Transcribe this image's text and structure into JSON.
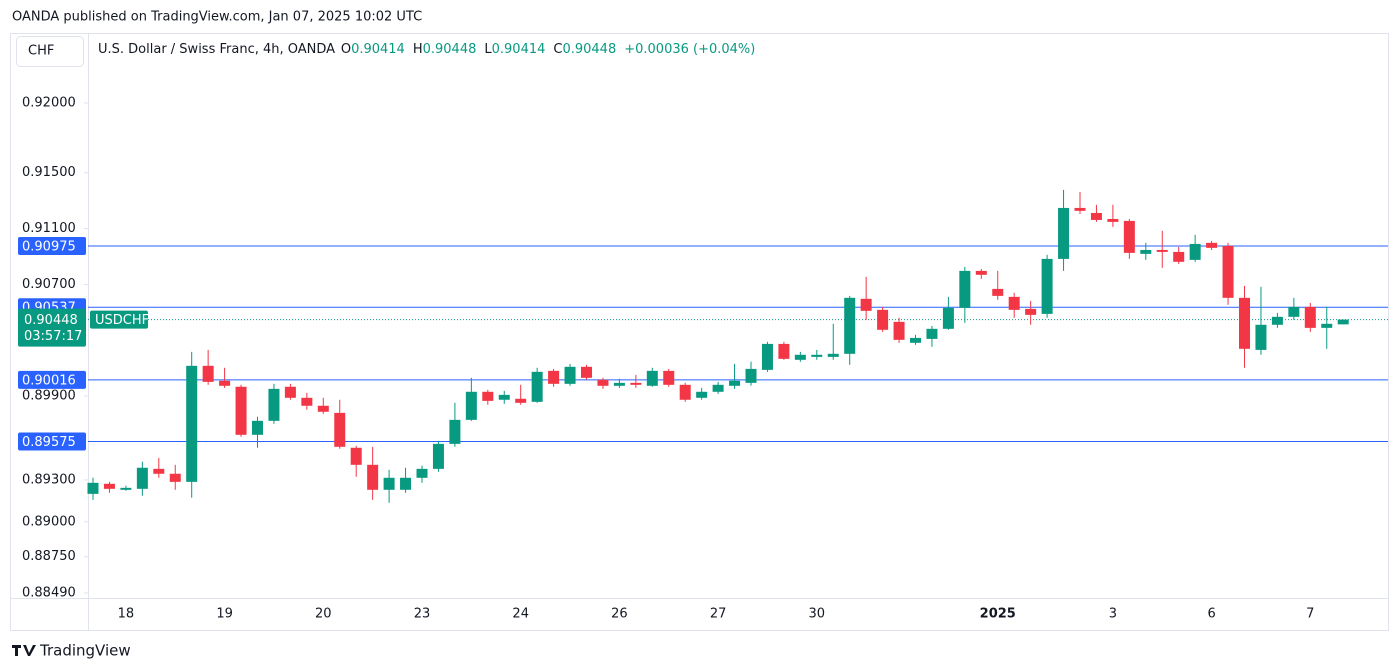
{
  "header": "OANDA published on TradingView.com, Jan 07, 2025 10:02 UTC",
  "footer": "TradingView",
  "chart_data": {
    "type": "candlestick",
    "unit": "CHF",
    "symbol": "USDCHF",
    "countdown": "03:57:17",
    "legend": {
      "name": "U.S. Dollar / Swiss Franc, 4h, OANDA",
      "ohlc": [
        {
          "key": "O",
          "value": "0.90414"
        },
        {
          "key": "H",
          "value": "0.90448"
        },
        {
          "key": "L",
          "value": "0.90414"
        },
        {
          "key": "C",
          "value": "0.90448"
        }
      ],
      "change": "+0.00036 (+0.04%)"
    },
    "up_color": "#089981",
    "down_color": "#f23645",
    "level_color": "#2962ff",
    "ylim": [
      0.88454,
      0.92501
    ],
    "yticks": [
      {
        "value": 0.92,
        "label": "0.92000"
      },
      {
        "value": 0.915,
        "label": "0.91500"
      },
      {
        "value": 0.911,
        "label": "0.91100"
      },
      {
        "value": 0.907,
        "label": "0.90700"
      },
      {
        "value": 0.899,
        "label": "0.89900"
      },
      {
        "value": 0.893,
        "label": "0.89300"
      },
      {
        "value": 0.89,
        "label": "0.89000"
      },
      {
        "value": 0.8875,
        "label": "0.88750"
      },
      {
        "value": 0.8849,
        "label": "0.88490"
      }
    ],
    "levels": [
      0.90975,
      0.90537,
      0.90016,
      0.89575
    ],
    "last_price": 0.90448,
    "categories": [
      null,
      null,
      "18",
      null,
      null,
      null,
      null,
      null,
      "19",
      null,
      null,
      null,
      null,
      null,
      "20",
      null,
      null,
      null,
      null,
      null,
      "23",
      null,
      null,
      null,
      null,
      null,
      "24",
      null,
      null,
      null,
      null,
      null,
      "26",
      null,
      null,
      null,
      null,
      null,
      "27",
      null,
      null,
      null,
      null,
      null,
      "30",
      null,
      null,
      null,
      null,
      null,
      null,
      null,
      null,
      null,
      null,
      "2025",
      null,
      null,
      null,
      null,
      null,
      null,
      "3",
      null,
      null,
      null,
      null,
      null,
      "6",
      null,
      null,
      null,
      null,
      null,
      "7",
      null,
      null
    ],
    "open": [
      0.892,
      0.89272,
      0.89229,
      0.89236,
      0.89379,
      0.89344,
      0.89286,
      0.90117,
      0.9001,
      0.89967,
      0.89623,
      0.89723,
      0.89967,
      0.89888,
      0.89831,
      0.8978,
      0.8953,
      0.89408,
      0.89229,
      0.89229,
      0.89315,
      0.89379,
      0.89558,
      0.8973,
      0.89931,
      0.89874,
      0.89881,
      0.89859,
      0.90081,
      0.89988,
      0.9011,
      0.90017,
      0.89974,
      0.89995,
      0.89974,
      0.90081,
      0.89981,
      0.89888,
      0.89931,
      0.89974,
      0.89995,
      0.90088,
      0.90274,
      0.9016,
      0.90181,
      0.90181,
      0.90203,
      0.90597,
      0.90518,
      0.90432,
      0.90282,
      0.9031,
      0.90382,
      0.90532,
      0.90797,
      0.90668,
      0.90611,
      0.90525,
      0.90489,
      0.90883,
      0.91248,
      0.91212,
      0.91169,
      0.91155,
      0.90919,
      0.90947,
      0.90933,
      0.90876,
      0.90998,
      0.90976,
      0.90604,
      0.90231,
      0.90411,
      0.90468,
      0.90539,
      0.90389,
      0.90414
    ],
    "high": [
      0.89315,
      0.89286,
      0.89258,
      0.8943,
      0.89458,
      0.89408,
      0.90217,
      0.90231,
      0.90103,
      0.89981,
      0.89752,
      0.89988,
      0.89988,
      0.89924,
      0.89888,
      0.89874,
      0.89544,
      0.89537,
      0.89372,
      0.89387,
      0.89401,
      0.8958,
      0.89852,
      0.90031,
      0.89945,
      0.89938,
      0.89981,
      0.90103,
      0.90095,
      0.90131,
      0.90124,
      0.90031,
      0.90024,
      0.90052,
      0.90103,
      0.90095,
      0.89995,
      0.89959,
      0.90002,
      0.90131,
      0.90146,
      0.90289,
      0.90289,
      0.90217,
      0.90231,
      0.90418,
      0.90618,
      0.90754,
      0.90539,
      0.90461,
      0.90339,
      0.90403,
      0.90611,
      0.90826,
      0.90811,
      0.90797,
      0.9064,
      0.90582,
      0.90912,
      0.91377,
      0.91363,
      0.9127,
      0.9127,
      0.91169,
      0.90998,
      0.91084,
      0.90969,
      0.91055,
      0.91012,
      0.90998,
      0.9069,
      0.90683,
      0.90496,
      0.90604,
      0.90568,
      0.90539,
      0.90448
    ],
    "low": [
      0.89157,
      0.89208,
      0.89222,
      0.89186,
      0.89315,
      0.89229,
      0.89172,
      0.89981,
      0.89959,
      0.89609,
      0.8953,
      0.89702,
      0.89874,
      0.89802,
      0.89773,
      0.89523,
      0.89322,
      0.89157,
      0.89136,
      0.89208,
      0.89279,
      0.89358,
      0.89537,
      0.89723,
      0.89838,
      0.89845,
      0.89838,
      0.89852,
      0.89967,
      0.89974,
      0.90017,
      0.89952,
      0.89959,
      0.89959,
      0.89967,
      0.89967,
      0.89859,
      0.89874,
      0.89916,
      0.89952,
      0.89974,
      0.90074,
      0.9016,
      0.90146,
      0.9016,
      0.9016,
      0.90124,
      0.90446,
      0.9036,
      0.90282,
      0.90267,
      0.90253,
      0.90375,
      0.90425,
      0.9074,
      0.9059,
      0.90461,
      0.90411,
      0.90461,
      0.90797,
      0.91205,
      0.91148,
      0.91112,
      0.90883,
      0.90876,
      0.90819,
      0.90847,
      0.90862,
      0.90947,
      0.90554,
      0.90103,
      0.90196,
      0.90389,
      0.90446,
      0.9036,
      0.90239,
      0.90414
    ],
    "close": [
      0.89279,
      0.89236,
      0.89243,
      0.89387,
      0.89344,
      0.89286,
      0.90117,
      0.90002,
      0.89974,
      0.89623,
      0.89723,
      0.89952,
      0.89888,
      0.89831,
      0.89788,
      0.89537,
      0.89408,
      0.89229,
      0.89315,
      0.89315,
      0.89379,
      0.89558,
      0.8973,
      0.89931,
      0.89866,
      0.89909,
      0.89852,
      0.90074,
      0.89988,
      0.9011,
      0.90031,
      0.89974,
      0.89995,
      0.89981,
      0.90081,
      0.89981,
      0.89874,
      0.89931,
      0.89981,
      0.9001,
      0.90095,
      0.90274,
      0.90167,
      0.90196,
      0.90196,
      0.90203,
      0.90604,
      0.90511,
      0.90375,
      0.90303,
      0.90317,
      0.90382,
      0.90532,
      0.90797,
      0.90769,
      0.90618,
      0.90518,
      0.90482,
      0.90883,
      0.91248,
      0.91227,
      0.91162,
      0.91148,
      0.90926,
      0.90947,
      0.90933,
      0.90862,
      0.9099,
      0.90962,
      0.90604,
      0.90239,
      0.90411,
      0.90468,
      0.90539,
      0.90389,
      0.90418,
      0.90448
    ]
  }
}
